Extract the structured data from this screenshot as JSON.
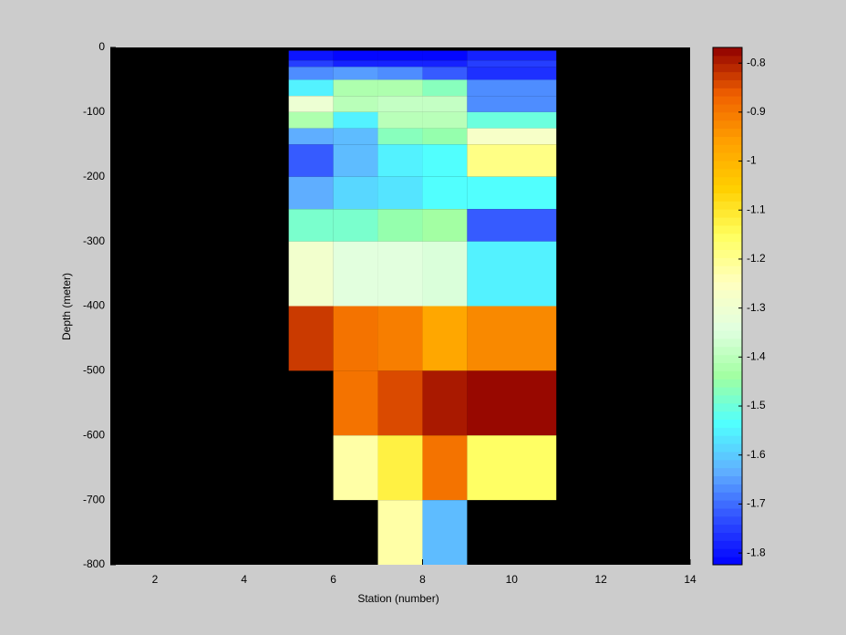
{
  "chart_data": {
    "type": "heatmap",
    "xlabel": "Station (number)",
    "ylabel": "Depth (meter)",
    "x_edges": [
      5,
      6,
      7,
      8,
      9,
      11
    ],
    "y_edges": [
      -5,
      -20,
      -30,
      -50,
      -75,
      -100,
      -125,
      -150,
      -200,
      -250,
      -300,
      -400,
      -500,
      -600,
      -700,
      -800
    ],
    "values": [
      [
        -1.8,
        -1.82,
        -1.82,
        -1.82,
        -1.78
      ],
      [
        -1.75,
        -1.78,
        -1.78,
        -1.78,
        -1.75
      ],
      [
        -1.67,
        -1.65,
        -1.66,
        -1.72,
        -1.76
      ],
      [
        -1.55,
        -1.42,
        -1.42,
        -1.47,
        -1.66
      ],
      [
        -1.3,
        -1.4,
        -1.38,
        -1.38,
        -1.66
      ],
      [
        -1.42,
        -1.55,
        -1.4,
        -1.41,
        -1.5
      ],
      [
        -1.64,
        -1.62,
        -1.47,
        -1.45,
        -1.27
      ],
      [
        -1.72,
        -1.62,
        -1.55,
        -1.54,
        -1.19
      ],
      [
        -1.64,
        -1.59,
        -1.57,
        -1.53,
        -1.53
      ],
      [
        -1.49,
        -1.49,
        -1.46,
        -1.44,
        -1.72
      ],
      [
        -1.28,
        -1.33,
        -1.33,
        -1.35,
        -1.55
      ],
      [
        -0.82,
        -0.89,
        -0.91,
        -0.97,
        -0.92
      ],
      [
        null,
        -0.89,
        -0.85,
        -0.8,
        -0.77
      ],
      [
        null,
        -1.22,
        -1.13,
        -0.9,
        -1.15
      ],
      [
        null,
        null,
        -1.22,
        -1.62,
        null
      ]
    ],
    "xlim": [
      1,
      14
    ],
    "xticks": [
      2,
      4,
      6,
      8,
      10,
      12,
      14
    ],
    "ylim": [
      -800,
      0
    ],
    "yticks": [
      0,
      -100,
      -200,
      -300,
      -400,
      -500,
      -600,
      -700,
      -800
    ],
    "zlim": [
      -1.824,
      -0.768
    ],
    "zticks": [
      -0.8,
      -0.9,
      -1,
      -1.1,
      -1.2,
      -1.3,
      -1.4,
      -1.5,
      -1.6,
      -1.7,
      -1.8
    ],
    "colormap": [
      "#0000ff",
      "#3050ff",
      "#60b0ff",
      "#50ffff",
      "#a0ffa0",
      "#e0ffe0",
      "#ffffc0",
      "#ffff60",
      "#ffd000",
      "#ffa000",
      "#f06000",
      "#900000"
    ],
    "missing_color": "#000000",
    "background": "#cccccc"
  }
}
